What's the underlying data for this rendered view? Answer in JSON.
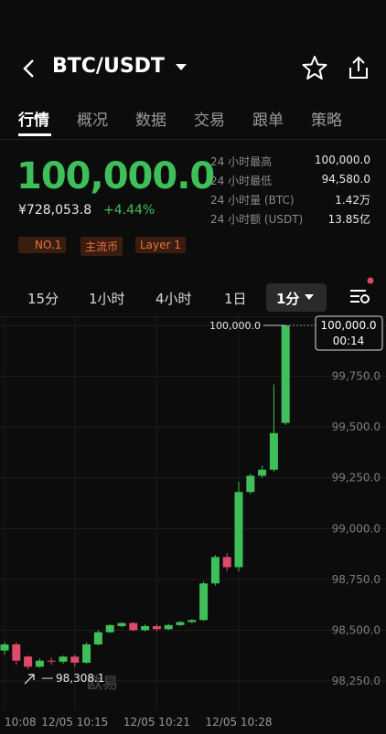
{
  "header": {
    "title": "BTC/USDT"
  },
  "tabs": [
    "行情",
    "概况",
    "数据",
    "交易",
    "跟单",
    "策略"
  ],
  "quote": {
    "price": "100,000.0",
    "cny": "¥728,053.8",
    "change": "+4.44%"
  },
  "stats": [
    [
      "24 小时最高",
      "100,000.0"
    ],
    [
      "24 小时最低",
      "94,580.0"
    ],
    [
      "24 小时量 (BTC)",
      "1.42万"
    ],
    [
      "24 小时额 (USDT)",
      "13.85亿"
    ]
  ],
  "tags": [
    "NO.1",
    "主流币",
    "Layer 1"
  ],
  "intervals": [
    "15分",
    "1小时",
    "4小时",
    "1日"
  ],
  "active_interval": "1分",
  "watermark": "欧易",
  "chart_data": {
    "type": "candlestick",
    "categories": [
      "10:08",
      null,
      null,
      null,
      null,
      null,
      "12/05 10:15",
      null,
      null,
      null,
      null,
      null,
      null,
      "12/05 10:21",
      null,
      null,
      null,
      null,
      null,
      null,
      "12/05 10:28",
      null,
      null,
      null,
      null
    ],
    "open": [
      98400,
      98430,
      98370,
      98320,
      98350,
      98345,
      98370,
      98340,
      98430,
      98490,
      98520,
      98535,
      98500,
      98520,
      98505,
      98525,
      98540,
      98550,
      98730,
      98860,
      98810,
      99180,
      99260,
      99290,
      99520
    ],
    "high": [
      98440,
      98440,
      98375,
      98360,
      98365,
      98375,
      98380,
      98440,
      98500,
      98530,
      98540,
      98540,
      98530,
      98530,
      98530,
      98545,
      98555,
      98740,
      98870,
      98880,
      99230,
      99270,
      99310,
      99710,
      100000
    ],
    "low": [
      98380,
      98330,
      98308.1,
      98315,
      98330,
      98335,
      98320,
      98335,
      98425,
      98485,
      98515,
      98495,
      98495,
      98495,
      98500,
      98520,
      98535,
      98545,
      98720,
      98790,
      98790,
      99170,
      99250,
      99280,
      99510
    ],
    "close": [
      98430,
      98350,
      98320,
      98350,
      98345,
      98370,
      98340,
      98430,
      98490,
      98525,
      98535,
      98500,
      98520,
      98505,
      98525,
      98540,
      98550,
      98730,
      98860,
      98810,
      99180,
      99260,
      99290,
      99470,
      100000
    ],
    "up_color": "#3fbf5a",
    "down_color": "#de4a6c",
    "ylim": [
      98115,
      100036
    ],
    "yticks": [
      {
        "value": 98250,
        "label": "98,250.0"
      },
      {
        "value": 98500,
        "label": "98,500.0"
      },
      {
        "value": 98750,
        "label": "98,750.0"
      },
      {
        "value": 99000,
        "label": "99,000.0"
      },
      {
        "value": 99250,
        "label": "99,250.0"
      },
      {
        "value": 99500,
        "label": "99,500.0"
      },
      {
        "value": 99750,
        "label": "99,750.0"
      },
      {
        "value": 100000,
        "label": "100,000.0"
      }
    ],
    "grid": true,
    "last_price": {
      "value": 100000,
      "label": "100,000.0"
    },
    "countdown": "00:14",
    "high_marker": {
      "value": 100000,
      "label": "100,000.0"
    },
    "low_marker": {
      "value": 98308.1,
      "label": "98,308.1"
    }
  }
}
